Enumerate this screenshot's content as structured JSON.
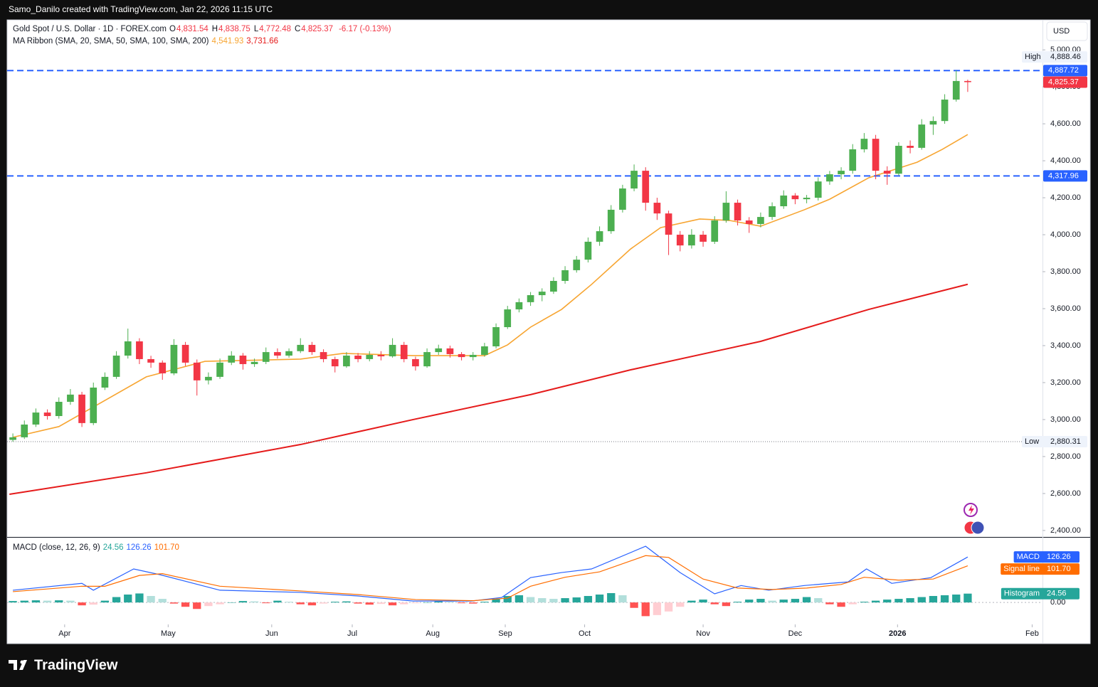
{
  "page": {
    "credit": "Samo_Danilo created with TradingView.com, Jan 22, 2026 11:15 UTC",
    "brand": "TradingView"
  },
  "chart_data": {
    "type": "candlestick",
    "legend": {
      "symbol": "Gold Spot / U.S. Dollar · 1D · FOREX.com",
      "ohlc": [
        {
          "key": "O",
          "label": "4,831.54"
        },
        {
          "key": "H",
          "label": "4,838.75"
        },
        {
          "key": "L",
          "label": "4,772.48"
        },
        {
          "key": "C",
          "label": "4,825.37"
        }
      ],
      "change": "-6.17 (-0.13%)",
      "ma_title": "MA Ribbon (SMA, 20, SMA, 50, SMA, 100, SMA, 200)",
      "ma_values": [
        "4,541.93",
        "3,731.66"
      ]
    },
    "currency": "USD",
    "xlim": [
      -0.5,
      89.5
    ],
    "xticks": [
      {
        "value": 4.5,
        "label": "Apr"
      },
      {
        "value": 13.5,
        "label": "May"
      },
      {
        "value": 22.5,
        "label": "Jun"
      },
      {
        "value": 29.5,
        "label": "Jul"
      },
      {
        "value": 36.5,
        "label": "Aug"
      },
      {
        "value": 42.8,
        "label": "Sep"
      },
      {
        "value": 49.7,
        "label": "Oct"
      },
      {
        "value": 60,
        "label": "Nov"
      },
      {
        "value": 68,
        "label": "Dec"
      },
      {
        "value": 76.9,
        "label": "2026"
      },
      {
        "value": 88.6,
        "label": "Feb"
      }
    ],
    "ylim": [
      2365,
      5162
    ],
    "yticks": [
      {
        "value": 2400,
        "label": "2,400.00"
      },
      {
        "value": 2600,
        "label": "2,600.00"
      },
      {
        "value": 2800,
        "label": "2,800.00"
      },
      {
        "value": 3000,
        "label": "3,000.00"
      },
      {
        "value": 3200,
        "label": "3,200.00"
      },
      {
        "value": 3400,
        "label": "3,400.00"
      },
      {
        "value": 3600,
        "label": "3,600.00"
      },
      {
        "value": 3800,
        "label": "3,800.00"
      },
      {
        "value": 4000,
        "label": "4,000.00"
      },
      {
        "value": 4200,
        "label": "4,200.00"
      },
      {
        "value": 4400,
        "label": "4,400.00"
      },
      {
        "value": 4600,
        "label": "4,600.00"
      },
      {
        "value": 4800,
        "label": "4,800.00"
      },
      {
        "value": 5000,
        "label": "5,000.00"
      }
    ],
    "candles": {
      "up_color": "#4caf50",
      "down_color": "#f23645",
      "ohlc": [
        [
          2890,
          2925,
          2880.31,
          2904
        ],
        [
          2904,
          2995,
          2895,
          2973
        ],
        [
          2973,
          3060,
          2960,
          3038
        ],
        [
          3038,
          3055,
          3000,
          3019
        ],
        [
          3019,
          3120,
          3005,
          3096
        ],
        [
          3096,
          3165,
          3080,
          3135
        ],
        [
          3135,
          3150,
          2960,
          2981
        ],
        [
          2981,
          3200,
          2970,
          3173
        ],
        [
          3173,
          3255,
          3160,
          3231
        ],
        [
          3231,
          3370,
          3220,
          3346
        ],
        [
          3346,
          3492,
          3330,
          3423
        ],
        [
          3423,
          3440,
          3300,
          3327
        ],
        [
          3327,
          3345,
          3280,
          3308
        ],
        [
          3308,
          3320,
          3215,
          3250
        ],
        [
          3250,
          3435,
          3240,
          3404
        ],
        [
          3404,
          3420,
          3290,
          3308
        ],
        [
          3308,
          3325,
          3130,
          3212
        ],
        [
          3212,
          3255,
          3190,
          3231
        ],
        [
          3231,
          3330,
          3220,
          3308
        ],
        [
          3308,
          3370,
          3295,
          3346
        ],
        [
          3346,
          3360,
          3270,
          3300
        ],
        [
          3300,
          3330,
          3285,
          3312
        ],
        [
          3312,
          3390,
          3300,
          3365
        ],
        [
          3365,
          3385,
          3330,
          3346
        ],
        [
          3346,
          3385,
          3335,
          3370
        ],
        [
          3370,
          3440,
          3360,
          3404
        ],
        [
          3404,
          3420,
          3350,
          3365
        ],
        [
          3365,
          3380,
          3310,
          3327
        ],
        [
          3327,
          3340,
          3255,
          3288
        ],
        [
          3288,
          3365,
          3280,
          3346
        ],
        [
          3346,
          3360,
          3310,
          3327
        ],
        [
          3327,
          3370,
          3315,
          3350
        ],
        [
          3350,
          3370,
          3320,
          3342
        ],
        [
          3342,
          3440,
          3335,
          3404
        ],
        [
          3404,
          3420,
          3310,
          3327
        ],
        [
          3327,
          3340,
          3265,
          3288
        ],
        [
          3288,
          3385,
          3280,
          3365
        ],
        [
          3365,
          3405,
          3350,
          3385
        ],
        [
          3385,
          3400,
          3335,
          3354
        ],
        [
          3354,
          3365,
          3320,
          3338
        ],
        [
          3338,
          3365,
          3320,
          3350
        ],
        [
          3350,
          3415,
          3340,
          3396
        ],
        [
          3396,
          3520,
          3385,
          3500
        ],
        [
          3500,
          3615,
          3490,
          3596
        ],
        [
          3596,
          3655,
          3580,
          3635
        ],
        [
          3635,
          3690,
          3615,
          3673
        ],
        [
          3673,
          3710,
          3640,
          3692
        ],
        [
          3692,
          3770,
          3680,
          3750
        ],
        [
          3750,
          3830,
          3735,
          3808
        ],
        [
          3808,
          3885,
          3795,
          3865
        ],
        [
          3865,
          3985,
          3850,
          3962
        ],
        [
          3962,
          4045,
          3940,
          4019
        ],
        [
          4019,
          4160,
          4005,
          4135
        ],
        [
          4135,
          4270,
          4120,
          4250
        ],
        [
          4250,
          4380,
          4235,
          4346
        ],
        [
          4346,
          4365,
          4130,
          4173
        ],
        [
          4173,
          4200,
          4080,
          4115
        ],
        [
          4115,
          4130,
          3890,
          4000
        ],
        [
          4000,
          4020,
          3910,
          3942
        ],
        [
          3942,
          4030,
          3925,
          4000
        ],
        [
          4000,
          4020,
          3935,
          3962
        ],
        [
          3962,
          4100,
          3950,
          4077
        ],
        [
          4077,
          4235,
          4065,
          4173
        ],
        [
          4173,
          4190,
          4050,
          4077
        ],
        [
          4077,
          4095,
          4010,
          4058
        ],
        [
          4058,
          4120,
          4040,
          4096
        ],
        [
          4096,
          4175,
          4080,
          4154
        ],
        [
          4154,
          4240,
          4140,
          4212
        ],
        [
          4212,
          4225,
          4165,
          4192
        ],
        [
          4192,
          4215,
          4170,
          4200
        ],
        [
          4200,
          4310,
          4185,
          4288
        ],
        [
          4288,
          4345,
          4270,
          4327
        ],
        [
          4327,
          4365,
          4300,
          4346
        ],
        [
          4346,
          4490,
          4330,
          4462
        ],
        [
          4462,
          4550,
          4445,
          4519
        ],
        [
          4519,
          4540,
          4300,
          4346
        ],
        [
          4346,
          4370,
          4270,
          4330
        ],
        [
          4330,
          4500,
          4320,
          4481
        ],
        [
          4481,
          4510,
          4440,
          4470
        ],
        [
          4470,
          4625,
          4460,
          4596
        ],
        [
          4596,
          4640,
          4540,
          4615
        ],
        [
          4615,
          4760,
          4600,
          4731
        ],
        [
          4731,
          4888.46,
          4720,
          4831.54
        ],
        [
          4831.54,
          4838.75,
          4772.48,
          4825.37
        ]
      ]
    },
    "series": [
      {
        "color": "#f7a531",
        "x": [
          0,
          4,
          11.6,
          16.7,
          25,
          28.7,
          34.8,
          41,
          43,
          45,
          47.7,
          50.3,
          53.7,
          56.3,
          59.7,
          62.3,
          65,
          68.8,
          71,
          74.4,
          78.6,
          80.8,
          83
        ],
        "values": [
          2904,
          2962,
          3231,
          3315,
          3327,
          3358,
          3346,
          3346,
          3404,
          3500,
          3596,
          3731,
          3923,
          4038,
          4085,
          4077,
          4046,
          4135,
          4192,
          4308,
          4392,
          4462,
          4541.93
        ]
      },
      {
        "color": "#e51b1b",
        "x": [
          -0.3,
          11.6,
          25,
          34.8,
          45,
          53.7,
          65,
          74.4,
          83
        ],
        "values": [
          2596,
          2712,
          2865,
          3000,
          3135,
          3269,
          3423,
          3596,
          3731.66
        ]
      }
    ],
    "hlines": [
      {
        "value": 4887.72,
        "label": "4,887.72",
        "color": "#2962ff"
      },
      {
        "value": 4317.96,
        "label": "4,317.96",
        "color": "#2962ff"
      }
    ],
    "high": {
      "text": "High",
      "value": 4888.46,
      "label": "4,888.46"
    },
    "low": {
      "text": "Low",
      "value": 2880.31,
      "label": "2,880.31"
    },
    "last_label": "4,825.37",
    "macd": {
      "title": "MACD (close, 12, 26, 9)",
      "ylim": [
        -55,
        172
      ],
      "yticks": [
        {
          "value": 0,
          "label": "0.00"
        }
      ],
      "lines": [
        {
          "name": "MACD",
          "color": "#2962ff",
          "value_label": "126.26",
          "x": [
            0,
            6,
            7,
            10.5,
            12.8,
            18,
            25,
            30,
            34.8,
            39.9,
            42.5,
            45,
            47.7,
            50.3,
            55,
            58,
            61,
            63.3,
            65.7,
            68.8,
            72.6,
            74.2,
            76.4,
            79.8,
            83
          ],
          "values": [
            34,
            53,
            34,
            93,
            77,
            34,
            28,
            18,
            4,
            4,
            14,
            69,
            83,
            93,
            156,
            83,
            24,
            47,
            34,
            47,
            57,
            93,
            53,
            69,
            126.26
          ]
        },
        {
          "name": "Signal line",
          "color": "#ff6d00",
          "value_label": "101.70",
          "x": [
            0,
            6,
            8,
            11,
            13,
            18,
            25,
            30,
            35,
            40,
            43,
            45,
            48,
            51,
            55,
            57,
            60,
            63,
            66,
            69,
            72,
            74,
            77,
            80,
            83
          ],
          "values": [
            30,
            45,
            45,
            75,
            80,
            45,
            32,
            22,
            8,
            5,
            12,
            45,
            70,
            85,
            130,
            125,
            65,
            40,
            36,
            40,
            50,
            70,
            62,
            65,
            101.7
          ]
        }
      ],
      "histogram": {
        "name": "Histogram",
        "value_label": "24.56",
        "up_color": "#26a69a",
        "up_fade": "#b2dfdb",
        "down_color": "#ff5252",
        "down_fade": "#ffcdd2",
        "values": [
          4,
          5,
          6,
          5,
          6,
          5,
          -8,
          -6,
          5,
          15,
          22,
          25,
          18,
          10,
          -3,
          -12,
          -18,
          -10,
          -5,
          0,
          4,
          3,
          -2,
          5,
          2,
          -5,
          -8,
          -3,
          2,
          3,
          -3,
          -6,
          -4,
          -8,
          -5,
          -2,
          0,
          3,
          2,
          -2,
          -3,
          2,
          10,
          18,
          20,
          15,
          12,
          10,
          12,
          14,
          18,
          22,
          26,
          20,
          -15,
          -38,
          -35,
          -25,
          -12,
          5,
          8,
          -5,
          -10,
          2,
          8,
          10,
          5,
          8,
          10,
          15,
          12,
          -5,
          -12,
          -5,
          2,
          5,
          8,
          10,
          12,
          15,
          18,
          20,
          22,
          24.56
        ]
      }
    }
  }
}
